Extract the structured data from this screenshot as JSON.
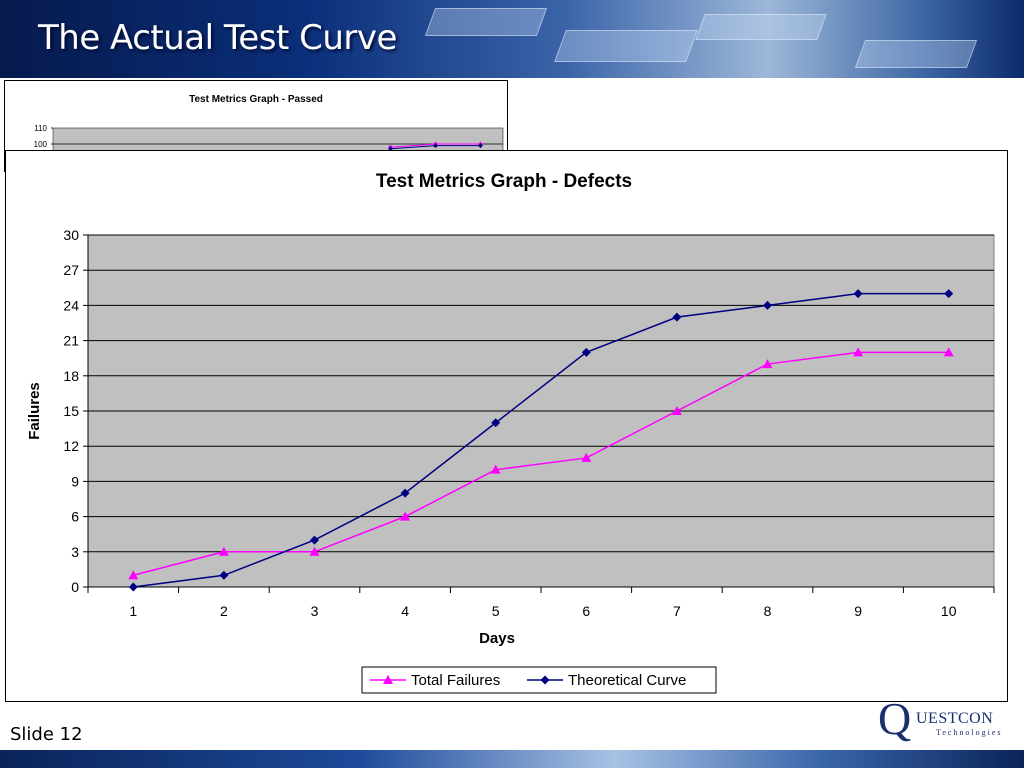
{
  "slide": {
    "title": "The Actual Test Curve",
    "number_label": "Slide 12",
    "logo": {
      "letter": "Q",
      "name": "UESTCON",
      "sub": "Technologies"
    }
  },
  "chart_data": [
    {
      "type": "line",
      "title": "Test Metrics Graph - Passed",
      "partially_hidden": true,
      "y_ticks_visible": [
        110,
        100
      ],
      "series": [
        {
          "name": "",
          "color": "#ff00ff",
          "marker": "triangle",
          "points": [
            [
              8,
              98
            ],
            [
              9,
              100
            ],
            [
              10,
              100
            ]
          ]
        },
        {
          "name": "",
          "color": "#000080",
          "marker": "diamond",
          "points": [
            [
              8,
              97
            ],
            [
              9,
              99
            ],
            [
              10,
              99
            ]
          ]
        }
      ]
    },
    {
      "type": "line",
      "title": "Test Metrics Graph - Defects",
      "xlabel": "Days",
      "ylabel": "Failures",
      "categories": [
        "1",
        "2",
        "3",
        "4",
        "5",
        "6",
        "7",
        "8",
        "9",
        "10"
      ],
      "ylim": [
        0,
        30
      ],
      "yticks": [
        0,
        3,
        6,
        9,
        12,
        15,
        18,
        21,
        24,
        27,
        30
      ],
      "grid": true,
      "plot_background": "#c0c0c0",
      "legend_position": "bottom",
      "series": [
        {
          "name": "Total Failures",
          "color": "#ff00ff",
          "marker": "triangle",
          "values": [
            1,
            3,
            3,
            6,
            10,
            11,
            15,
            19,
            20,
            20
          ]
        },
        {
          "name": "Theoretical Curve",
          "color": "#000080",
          "marker": "diamond",
          "values": [
            0,
            1,
            4,
            8,
            14,
            20,
            23,
            24,
            25,
            25
          ]
        }
      ]
    }
  ]
}
